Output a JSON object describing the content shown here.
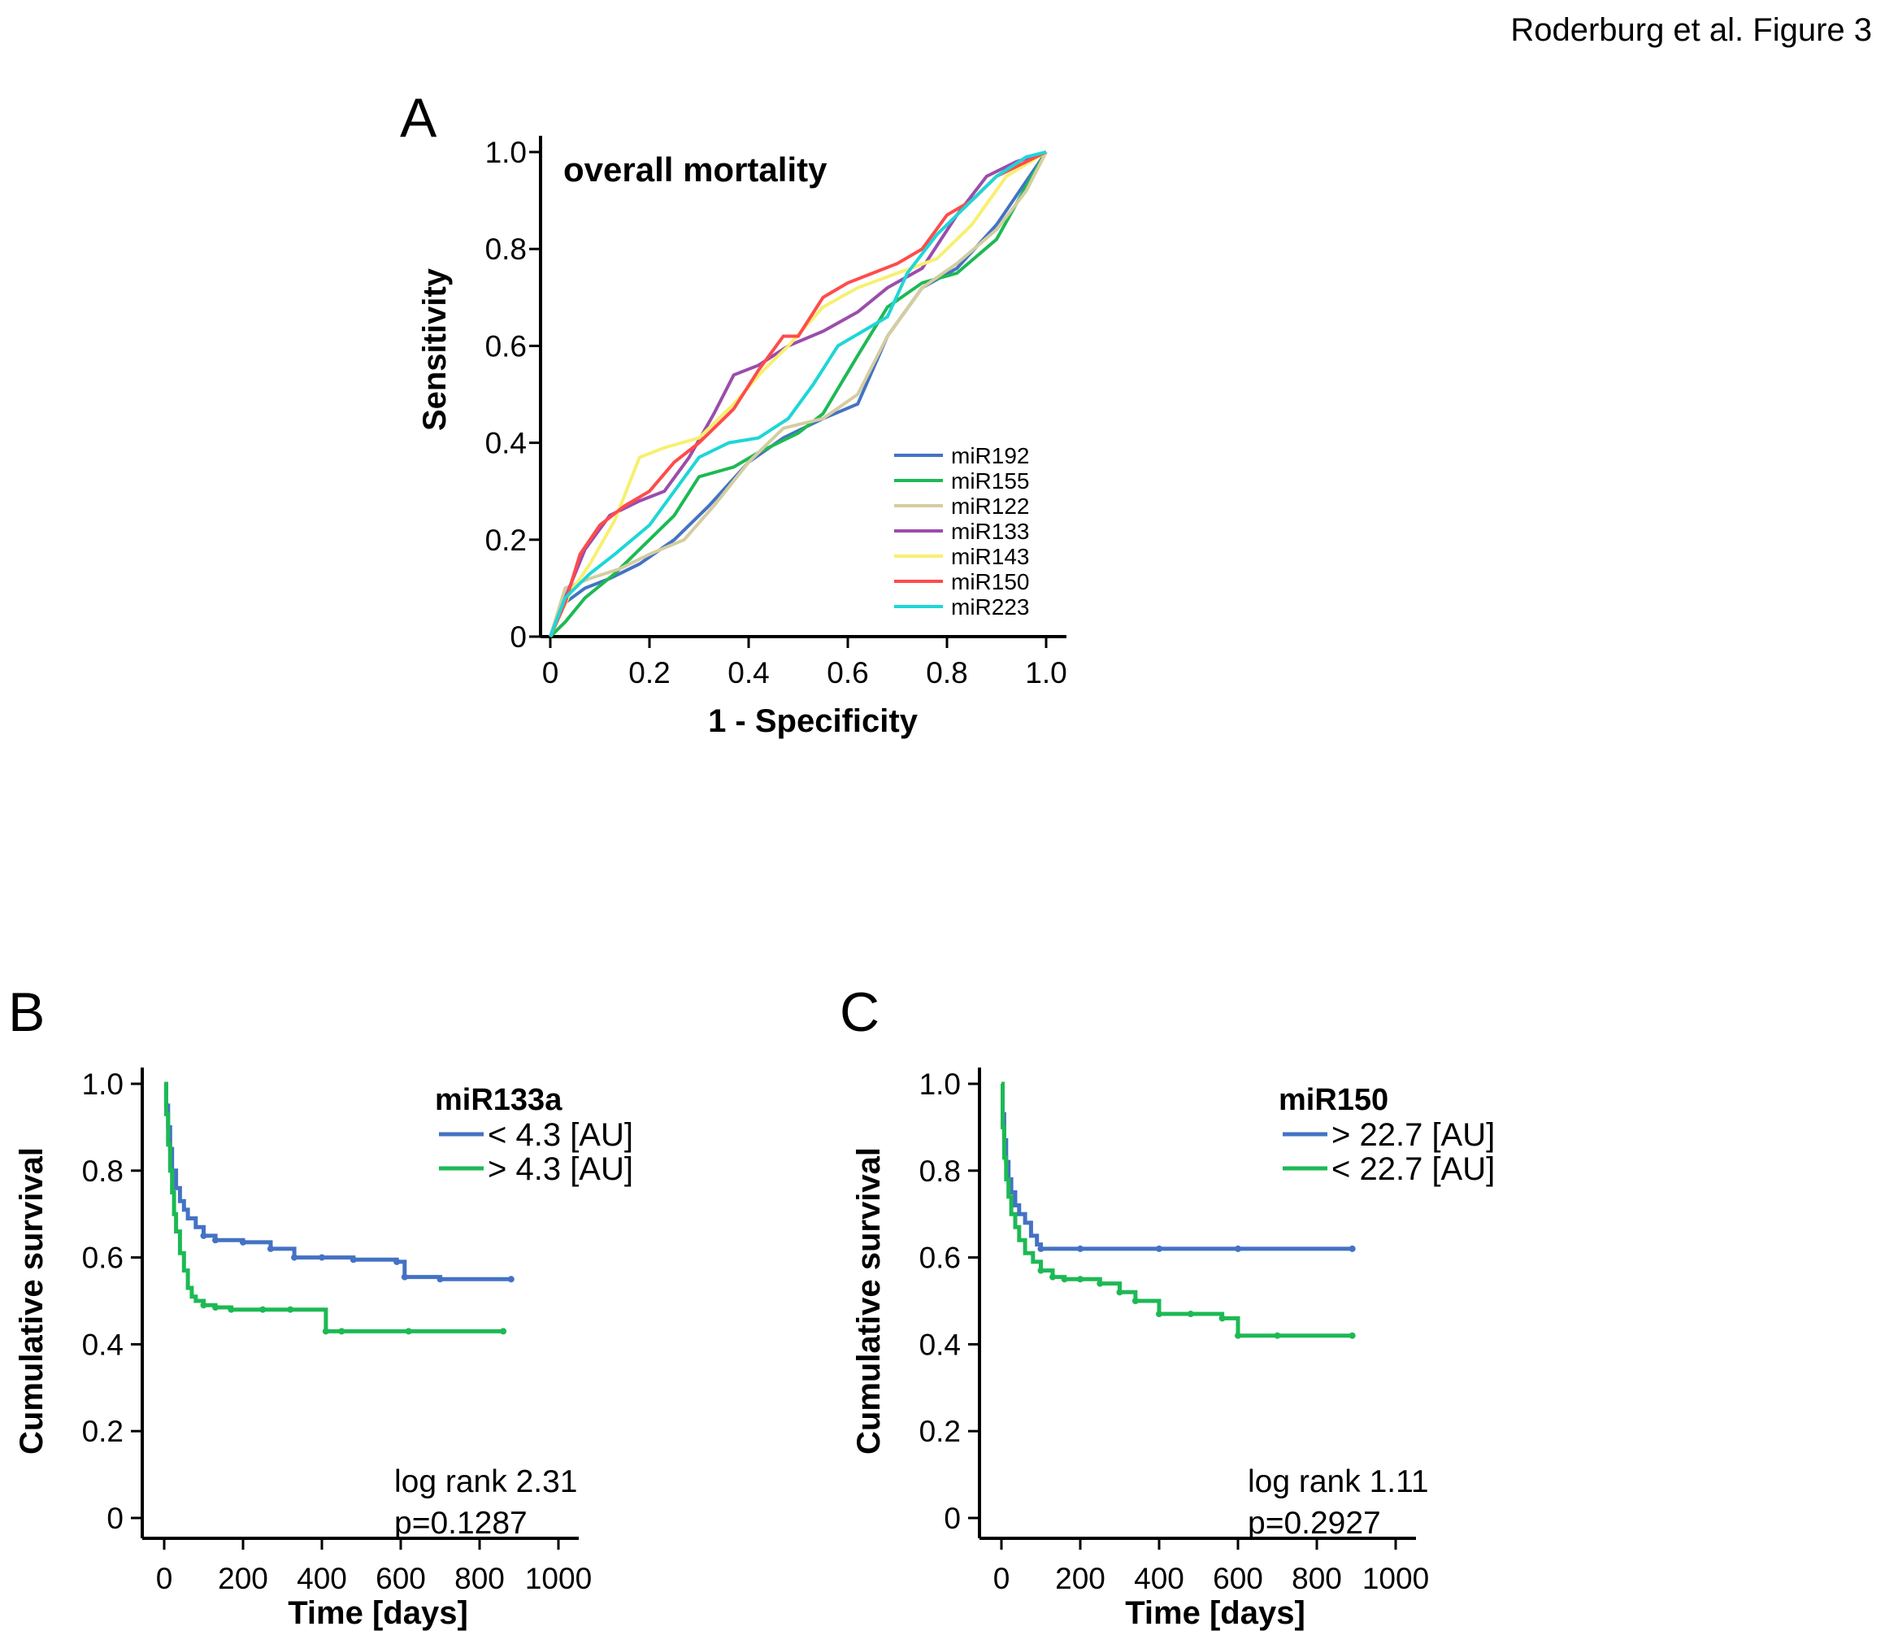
{
  "attribution": "Roderburg et al. Figure 3",
  "chart_data": [
    {
      "panel": "A",
      "type": "line",
      "title": "overall mortality",
      "xlabel": "1 - Specificity",
      "ylabel": "Sensitivity",
      "xlim": [
        0,
        1
      ],
      "ylim": [
        0,
        1
      ],
      "xticks": [
        "0",
        "0.2",
        "0.4",
        "0.6",
        "0.8",
        "1.0"
      ],
      "yticks": [
        "0",
        "0.2",
        "0.4",
        "0.6",
        "0.8",
        "1.0"
      ],
      "legend_position": "bottom-right",
      "series": [
        {
          "name": "miR192",
          "color": "#4472c4",
          "x": [
            0,
            0.03,
            0.07,
            0.12,
            0.18,
            0.25,
            0.32,
            0.4,
            0.47,
            0.55,
            0.62,
            0.68,
            0.75,
            0.82,
            0.9,
            0.96,
            1.0
          ],
          "y": [
            0,
            0.07,
            0.1,
            0.12,
            0.15,
            0.2,
            0.27,
            0.36,
            0.41,
            0.45,
            0.48,
            0.62,
            0.72,
            0.76,
            0.85,
            0.94,
            1.0
          ]
        },
        {
          "name": "miR155",
          "color": "#1db954",
          "x": [
            0,
            0.03,
            0.07,
            0.13,
            0.2,
            0.25,
            0.3,
            0.37,
            0.42,
            0.5,
            0.55,
            0.62,
            0.68,
            0.75,
            0.82,
            0.9,
            0.96,
            1.0
          ],
          "y": [
            0,
            0.03,
            0.08,
            0.13,
            0.2,
            0.25,
            0.33,
            0.35,
            0.38,
            0.42,
            0.46,
            0.58,
            0.68,
            0.73,
            0.75,
            0.82,
            0.93,
            1.0
          ]
        },
        {
          "name": "miR122",
          "color": "#d5cda0",
          "x": [
            0,
            0.03,
            0.08,
            0.14,
            0.2,
            0.27,
            0.33,
            0.4,
            0.47,
            0.55,
            0.62,
            0.68,
            0.75,
            0.82,
            0.9,
            0.96,
            1.0
          ],
          "y": [
            0,
            0.1,
            0.12,
            0.14,
            0.17,
            0.2,
            0.27,
            0.36,
            0.43,
            0.45,
            0.5,
            0.62,
            0.72,
            0.77,
            0.84,
            0.92,
            1.0
          ]
        },
        {
          "name": "miR133",
          "color": "#9b4dab",
          "x": [
            0,
            0.03,
            0.07,
            0.12,
            0.18,
            0.23,
            0.28,
            0.33,
            0.37,
            0.42,
            0.48,
            0.55,
            0.62,
            0.68,
            0.75,
            0.82,
            0.88,
            0.94,
            1.0
          ],
          "y": [
            0,
            0.08,
            0.18,
            0.25,
            0.28,
            0.3,
            0.37,
            0.46,
            0.54,
            0.56,
            0.6,
            0.63,
            0.67,
            0.72,
            0.76,
            0.87,
            0.95,
            0.98,
            1.0
          ]
        },
        {
          "name": "miR143",
          "color": "#f7f070",
          "x": [
            0,
            0.04,
            0.08,
            0.13,
            0.18,
            0.23,
            0.3,
            0.37,
            0.43,
            0.48,
            0.55,
            0.62,
            0.7,
            0.78,
            0.85,
            0.92,
            1.0
          ],
          "y": [
            0,
            0.09,
            0.15,
            0.24,
            0.37,
            0.39,
            0.41,
            0.48,
            0.55,
            0.6,
            0.68,
            0.72,
            0.75,
            0.78,
            0.85,
            0.95,
            1.0
          ]
        },
        {
          "name": "miR150",
          "color": "#ff4b4b",
          "x": [
            0,
            0.03,
            0.06,
            0.1,
            0.15,
            0.2,
            0.25,
            0.3,
            0.37,
            0.42,
            0.47,
            0.5,
            0.55,
            0.6,
            0.65,
            0.7,
            0.75,
            0.8,
            0.85,
            0.9,
            0.96,
            1.0
          ],
          "y": [
            0,
            0.07,
            0.17,
            0.23,
            0.27,
            0.3,
            0.36,
            0.4,
            0.47,
            0.55,
            0.62,
            0.62,
            0.7,
            0.73,
            0.75,
            0.77,
            0.8,
            0.87,
            0.9,
            0.95,
            0.98,
            1.0
          ]
        },
        {
          "name": "miR223",
          "color": "#1ed6d6",
          "x": [
            0,
            0.03,
            0.08,
            0.13,
            0.2,
            0.25,
            0.3,
            0.36,
            0.42,
            0.48,
            0.53,
            0.58,
            0.63,
            0.68,
            0.72,
            0.78,
            0.85,
            0.9,
            0.96,
            1.0
          ],
          "y": [
            0,
            0.08,
            0.13,
            0.17,
            0.23,
            0.3,
            0.37,
            0.4,
            0.41,
            0.45,
            0.52,
            0.6,
            0.63,
            0.66,
            0.75,
            0.83,
            0.9,
            0.95,
            0.99,
            1.0
          ]
        }
      ]
    },
    {
      "panel": "B",
      "type": "line",
      "step": true,
      "xlabel": "Time [days]",
      "ylabel": "Cumulative survival",
      "xlim": [
        0,
        1000
      ],
      "ylim": [
        0,
        1
      ],
      "xticks": [
        "0",
        "200",
        "400",
        "600",
        "800",
        "1000"
      ],
      "yticks": [
        "0",
        "0.2",
        "0.4",
        "0.6",
        "0.8",
        "1.0"
      ],
      "legend_title": "miR133a",
      "legend_position": "top-right",
      "annotation": [
        "log rank 2.31",
        "p=0.1287"
      ],
      "series": [
        {
          "name": "< 4.3 [AU]",
          "color": "#4472c4",
          "x": [
            0,
            5,
            10,
            15,
            20,
            30,
            40,
            50,
            60,
            80,
            100,
            130,
            200,
            270,
            330,
            400,
            480,
            590,
            610,
            700,
            880
          ],
          "y": [
            1.0,
            0.95,
            0.9,
            0.85,
            0.8,
            0.76,
            0.73,
            0.71,
            0.69,
            0.67,
            0.65,
            0.64,
            0.635,
            0.62,
            0.6,
            0.6,
            0.595,
            0.59,
            0.555,
            0.55,
            0.55
          ]
        },
        {
          "name": "> 4.3 [AU]",
          "color": "#1db954",
          "x": [
            0,
            5,
            10,
            15,
            20,
            25,
            30,
            40,
            50,
            60,
            70,
            80,
            100,
            130,
            170,
            250,
            320,
            410,
            450,
            620,
            860
          ],
          "y": [
            1.0,
            0.93,
            0.86,
            0.8,
            0.75,
            0.7,
            0.66,
            0.61,
            0.57,
            0.53,
            0.51,
            0.5,
            0.49,
            0.485,
            0.48,
            0.48,
            0.48,
            0.43,
            0.43,
            0.43,
            0.43
          ]
        }
      ]
    },
    {
      "panel": "C",
      "type": "line",
      "step": true,
      "xlabel": "Time [days]",
      "ylabel": "Cumulative survival",
      "xlim": [
        0,
        1000
      ],
      "ylim": [
        0,
        1
      ],
      "xticks": [
        "0",
        "200",
        "400",
        "600",
        "800",
        "1000"
      ],
      "yticks": [
        "0",
        "0.2",
        "0.4",
        "0.6",
        "0.8",
        "1.0"
      ],
      "legend_title": "miR150",
      "legend_position": "top-right",
      "annotation": [
        "log rank 1.11",
        "p=0.2927"
      ],
      "series": [
        {
          "name": "> 22.7 [AU]",
          "color": "#4472c4",
          "x": [
            0,
            3,
            7,
            12,
            18,
            25,
            35,
            45,
            60,
            75,
            90,
            100,
            200,
            400,
            600,
            890
          ],
          "y": [
            1.0,
            0.93,
            0.87,
            0.82,
            0.78,
            0.75,
            0.72,
            0.7,
            0.68,
            0.65,
            0.63,
            0.62,
            0.62,
            0.62,
            0.62,
            0.62
          ]
        },
        {
          "name": "< 22.7 [AU]",
          "color": "#1db954",
          "x": [
            0,
            3,
            7,
            12,
            18,
            25,
            35,
            45,
            60,
            80,
            100,
            130,
            160,
            200,
            250,
            300,
            340,
            400,
            480,
            560,
            600,
            700,
            890
          ],
          "y": [
            1.0,
            0.9,
            0.83,
            0.78,
            0.74,
            0.7,
            0.67,
            0.64,
            0.61,
            0.59,
            0.57,
            0.555,
            0.55,
            0.55,
            0.54,
            0.52,
            0.5,
            0.47,
            0.47,
            0.46,
            0.42,
            0.42,
            0.42
          ]
        }
      ]
    }
  ]
}
